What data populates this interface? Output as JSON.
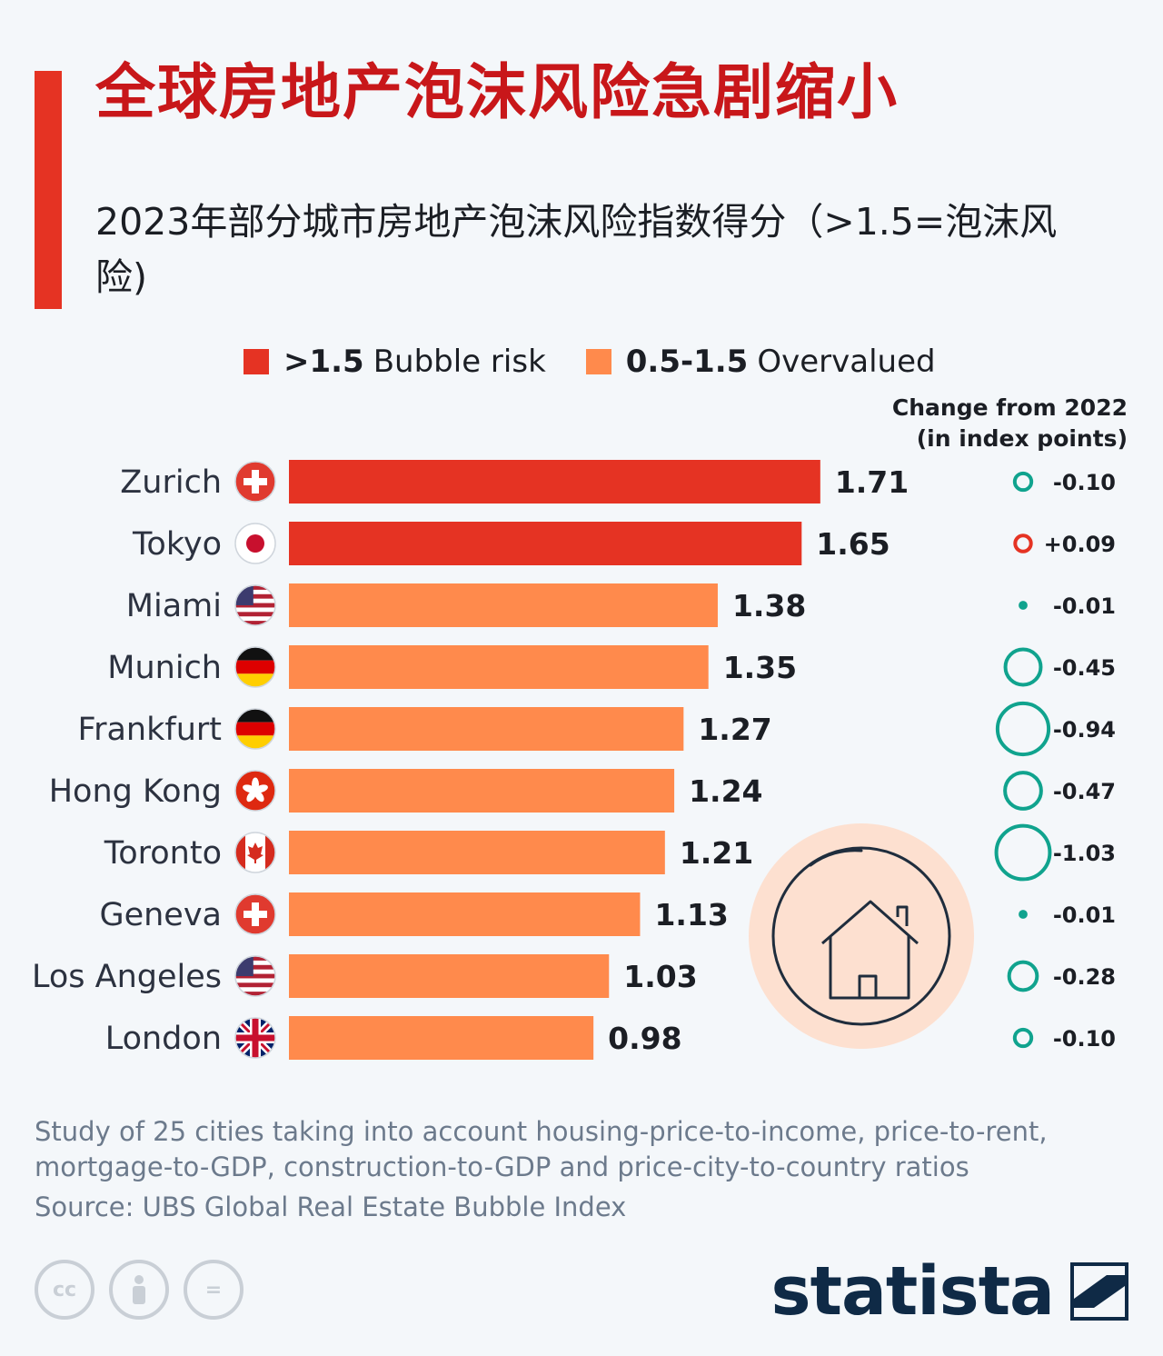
{
  "title": "全球房地产泡沫风险急剧缩小",
  "subtitle": "2023年部分城市房地产泡沫风险指数得分（>1.5=泡沫风险)",
  "legend": {
    "bubble_range": ">1.5",
    "bubble_text": "Bubble risk",
    "overvalued_range": "0.5-1.5",
    "overvalued_text": "Overvalued"
  },
  "change_header": {
    "line1": "Change from 2022",
    "line2": "(in index points)"
  },
  "colors": {
    "bubble": "#e53323",
    "overvalued": "#ff8a4c",
    "change_negative": "#10a38e",
    "change_positive": "#e53323",
    "house_circle": "#fde0d0"
  },
  "chart_data": {
    "type": "bar",
    "orientation": "horizontal",
    "title": "2023年部分城市房地产泡沫风险指数得分",
    "xlabel": "",
    "ylabel": "",
    "xlim": [
      0,
      1.8
    ],
    "categories": [
      "Zurich",
      "Tokyo",
      "Miami",
      "Munich",
      "Frankfurt",
      "Hong Kong",
      "Toronto",
      "Geneva",
      "Los Angeles",
      "London"
    ],
    "flags": [
      "switzerland-flag-icon",
      "japan-flag-icon",
      "usa-flag-icon",
      "germany-flag-icon",
      "germany-flag-icon",
      "hong-kong-flag-icon",
      "canada-flag-icon",
      "switzerland-flag-icon",
      "usa-flag-icon",
      "uk-flag-icon"
    ],
    "values": [
      1.71,
      1.65,
      1.38,
      1.35,
      1.27,
      1.24,
      1.21,
      1.13,
      1.03,
      0.98
    ],
    "value_labels": [
      "1.71",
      "1.65",
      "1.38",
      "1.35",
      "1.27",
      "1.24",
      "1.21",
      "1.13",
      "1.03",
      "0.98"
    ],
    "change_from_2022": [
      -0.1,
      0.09,
      -0.01,
      -0.45,
      -0.94,
      -0.47,
      -1.03,
      -0.01,
      -0.28,
      -0.1
    ],
    "change_labels": [
      "-0.10",
      "+0.09",
      "-0.01",
      "-0.45",
      "-0.94",
      "-0.47",
      "-1.03",
      "-0.01",
      "-0.28",
      "-0.10"
    ],
    "bubble_threshold": 1.5
  },
  "footnote": "Study of 25 cities taking into account housing-price-to-income, price-to-rent, mortgage-to-GDP, construction-to-GDP and price-city-to-country ratios",
  "source": "Source: UBS Global Real Estate Bubble Index",
  "license_icons": [
    "cc-icon",
    "by-person-icon",
    "nd-equal-icon"
  ],
  "license_text": {
    "cc": "cc",
    "nd": "="
  },
  "brand": "statista"
}
